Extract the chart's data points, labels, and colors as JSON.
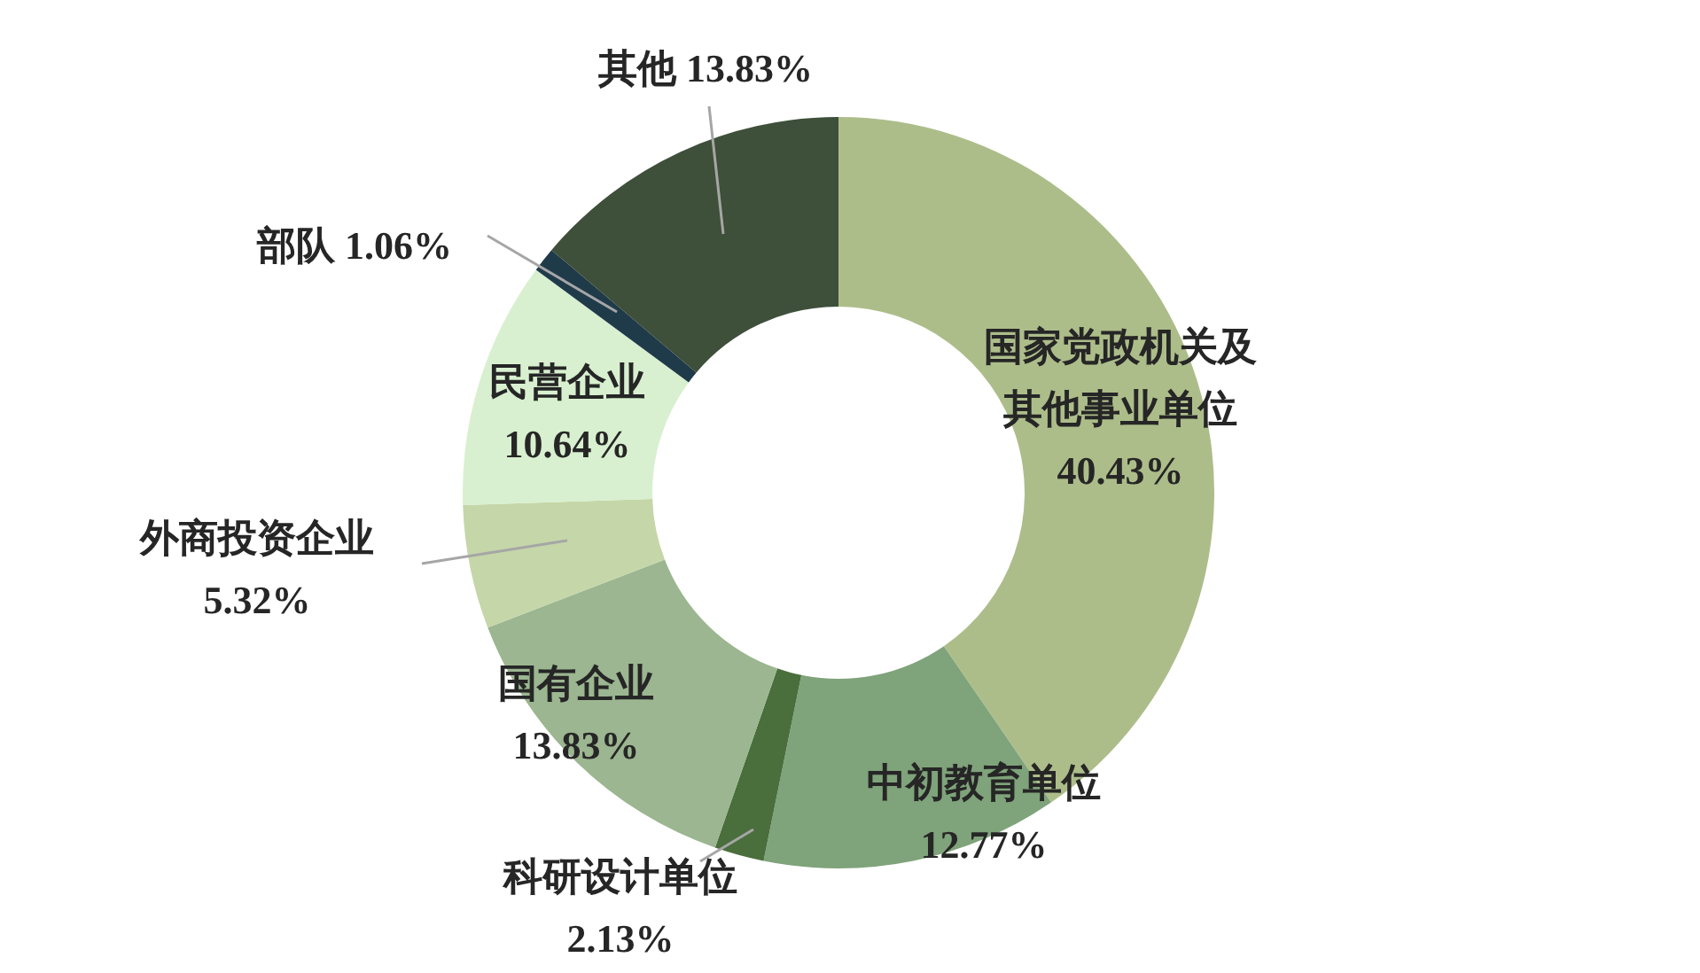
{
  "chart_data": {
    "type": "donut",
    "categories": [
      "国家党政机关及其他事业单位",
      "中初教育单位",
      "科研设计单位",
      "国有企业",
      "外商投资企业",
      "民营企业",
      "部队",
      "其他"
    ],
    "values": [
      40.43,
      12.77,
      2.13,
      13.83,
      5.32,
      10.64,
      1.06,
      13.83
    ],
    "value_labels": [
      "40.43%",
      "12.77%",
      "2.13%",
      "13.83%",
      "5.32%",
      "10.64%",
      "1.06%",
      "13.83%"
    ],
    "colors": [
      "#adbd8a",
      "#7fa37a",
      "#4a6e3c",
      "#9bb690",
      "#c5d6a8",
      "#d8f0cf",
      "#1f3b4a",
      "#3e4f3a"
    ]
  }
}
